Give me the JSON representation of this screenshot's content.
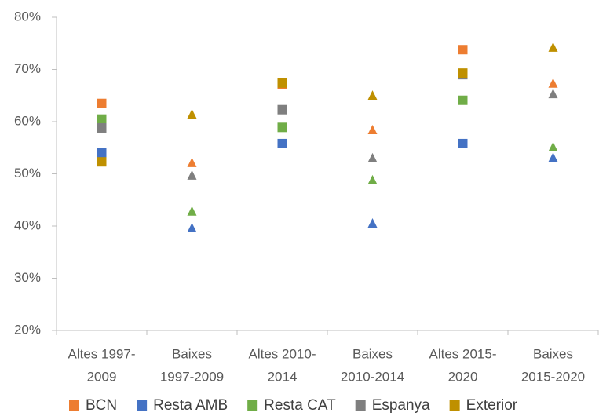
{
  "chart_data": {
    "type": "scatter",
    "categories": [
      [
        "Altes 1997-",
        "2009"
      ],
      [
        "Baixes",
        "1997-2009"
      ],
      [
        "Altes 2010-",
        "2014"
      ],
      [
        "Baixes",
        "2010-2014"
      ],
      [
        "Altes 2015-",
        "2020"
      ],
      [
        "Baixes",
        "2015-2020"
      ]
    ],
    "category_markers": [
      "square",
      "triangle",
      "square",
      "triangle",
      "square",
      "triangle"
    ],
    "series": [
      {
        "name": "BCN",
        "color": "#ed7d31",
        "values": [
          63.5,
          52.2,
          67.1,
          58.5,
          73.8,
          67.4
        ]
      },
      {
        "name": "Resta AMB",
        "color": "#4472c4",
        "values": [
          54.0,
          39.7,
          55.8,
          40.6,
          55.8,
          53.2
        ]
      },
      {
        "name": "Resta CAT",
        "color": "#70ad47",
        "values": [
          60.5,
          42.9,
          58.9,
          48.9,
          64.1,
          55.2
        ]
      },
      {
        "name": "Espanya",
        "color": "#7f7f7f",
        "values": [
          58.8,
          49.8,
          62.3,
          53.1,
          69.0,
          65.4
        ]
      },
      {
        "name": "Exterior",
        "color": "#bf9000",
        "values": [
          52.3,
          61.5,
          67.4,
          65.1,
          69.3,
          74.3
        ]
      }
    ],
    "ylim": [
      20,
      80
    ],
    "yticks": [
      {
        "value": 20,
        "label": "20%"
      },
      {
        "value": 30,
        "label": "30%"
      },
      {
        "value": 40,
        "label": "40%"
      },
      {
        "value": 50,
        "label": "50%"
      },
      {
        "value": 60,
        "label": "60%"
      },
      {
        "value": 70,
        "label": "70%"
      },
      {
        "value": 80,
        "label": "80%"
      }
    ],
    "grid": false,
    "legend": "bottom"
  }
}
